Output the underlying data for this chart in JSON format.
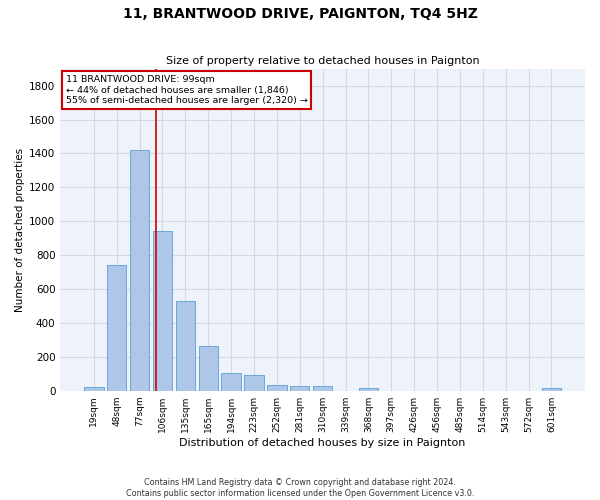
{
  "title": "11, BRANTWOOD DRIVE, PAIGNTON, TQ4 5HZ",
  "subtitle": "Size of property relative to detached houses in Paignton",
  "xlabel": "Distribution of detached houses by size in Paignton",
  "ylabel": "Number of detached properties",
  "footnote1": "Contains HM Land Registry data © Crown copyright and database right 2024.",
  "footnote2": "Contains public sector information licensed under the Open Government Licence v3.0.",
  "bin_labels": [
    "19sqm",
    "48sqm",
    "77sqm",
    "106sqm",
    "135sqm",
    "165sqm",
    "194sqm",
    "223sqm",
    "252sqm",
    "281sqm",
    "310sqm",
    "339sqm",
    "368sqm",
    "397sqm",
    "426sqm",
    "456sqm",
    "485sqm",
    "514sqm",
    "543sqm",
    "572sqm",
    "601sqm"
  ],
  "values": [
    20,
    740,
    1420,
    940,
    530,
    265,
    105,
    95,
    35,
    25,
    25,
    0,
    15,
    0,
    0,
    0,
    0,
    0,
    0,
    0,
    15
  ],
  "bar_color": "#aec6e8",
  "bar_edge_color": "#5a9fd4",
  "grid_color": "#d0d8e8",
  "background_color": "#ffffff",
  "plot_bg_color": "#eef2fa",
  "vline_x": 2.72,
  "vline_color": "#cc0000",
  "annotation_text": "11 BRANTWOOD DRIVE: 99sqm\n← 44% of detached houses are smaller (1,846)\n55% of semi-detached houses are larger (2,320) →",
  "annotation_box_color": "#cc0000",
  "ylim": [
    0,
    1900
  ],
  "yticks": [
    0,
    200,
    400,
    600,
    800,
    1000,
    1200,
    1400,
    1600,
    1800
  ],
  "title_fontsize": 10,
  "subtitle_fontsize": 8,
  "xlabel_fontsize": 8,
  "ylabel_fontsize": 7.5,
  "xtick_fontsize": 6.5,
  "ytick_fontsize": 7.5,
  "annot_fontsize": 6.8,
  "footnote_fontsize": 5.8
}
